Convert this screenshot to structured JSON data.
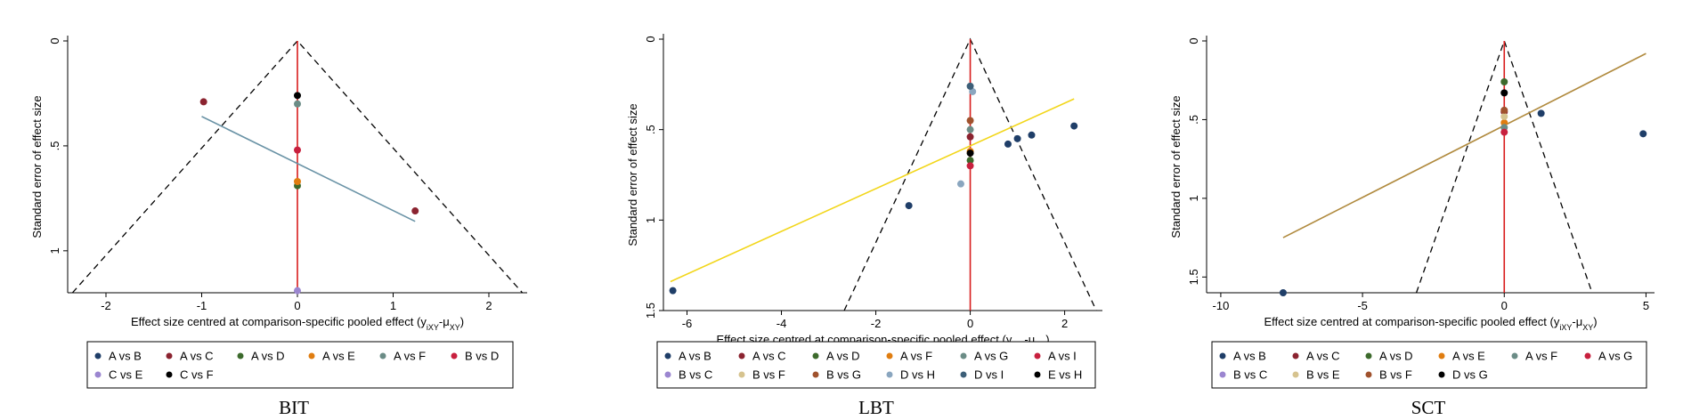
{
  "figure_title": "",
  "chart_data": [
    {
      "type": "scatter",
      "caption": "BIT",
      "xlabel": "Effect size centred at comparison-specific pooled effect (y",
      "xlabel_sub1": "iXY",
      "xlabel_mid": "-μ",
      "xlabel_sub2": "XY",
      "xlabel_end": ")",
      "ylabel": "Standard error of effect size",
      "xlim": [
        -2.4,
        2.4
      ],
      "ylim": [
        0,
        1.2
      ],
      "y_reversed": true,
      "xticks": [
        -2,
        -1,
        0,
        1,
        2
      ],
      "yticks": [
        0,
        0.5,
        1
      ],
      "ytick_labels": [
        "0",
        ".5",
        "1"
      ],
      "funnel_x_at_max": 2.35,
      "regression_line": {
        "x": [
          -1.0,
          1.23
        ],
        "y": [
          0.36,
          0.86
        ],
        "color": "#6a93a6"
      },
      "legend_position": "bottom",
      "legend_columns": 6,
      "series": [
        {
          "name": "A vs B",
          "color": "#1f3e68",
          "points": []
        },
        {
          "name": "A vs C",
          "color": "#8b2330",
          "points": [
            [
              -0.98,
              0.29
            ],
            [
              1.23,
              0.81
            ]
          ]
        },
        {
          "name": "A vs D",
          "color": "#3c6a2c",
          "points": [
            [
              0.0,
              0.69
            ]
          ]
        },
        {
          "name": "A vs E",
          "color": "#e07d10",
          "points": [
            [
              0.0,
              0.67
            ]
          ]
        },
        {
          "name": "A vs F",
          "color": "#6b8c86",
          "points": [
            [
              0.0,
              0.3
            ]
          ]
        },
        {
          "name": "B vs D",
          "color": "#c8203e",
          "points": [
            [
              0.0,
              0.52
            ]
          ]
        },
        {
          "name": "C vs E",
          "color": "#9b86d0",
          "points": [
            [
              0.0,
              1.19
            ]
          ]
        },
        {
          "name": "C vs F",
          "color": "#000000",
          "points": [
            [
              0.0,
              0.26
            ]
          ]
        }
      ]
    },
    {
      "type": "scatter",
      "caption": "LBT",
      "xlabel": "Effect size centred at comparison-specific pooled effect (y",
      "xlabel_sub1": "iXY",
      "xlabel_mid": "-μ",
      "xlabel_sub2": "XY",
      "xlabel_end": ")",
      "ylabel": "Standard error of effect size",
      "xlim": [
        -6.5,
        2.8
      ],
      "ylim": [
        0,
        1.5
      ],
      "y_reversed": true,
      "xticks": [
        -6,
        -4,
        -2,
        0,
        2
      ],
      "yticks": [
        0,
        0.5,
        1,
        1.5
      ],
      "ytick_labels": [
        "0",
        ".5",
        "1",
        "1.5"
      ],
      "funnel_x_at_max": 2.67,
      "regression_line": {
        "x": [
          -6.35,
          2.2
        ],
        "y": [
          1.34,
          0.33
        ],
        "color": "#f2d61a"
      },
      "legend_position": "bottom",
      "legend_columns": 6,
      "series": [
        {
          "name": "A vs B",
          "color": "#1f3e68",
          "points": [
            [
              -6.3,
              1.39
            ],
            [
              -1.3,
              0.92
            ],
            [
              0.8,
              0.58
            ],
            [
              1.0,
              0.55
            ],
            [
              1.3,
              0.53
            ],
            [
              2.2,
              0.48
            ]
          ]
        },
        {
          "name": "A vs C",
          "color": "#8b2330",
          "points": [
            [
              0.0,
              0.54
            ]
          ]
        },
        {
          "name": "A vs D",
          "color": "#3c6a2c",
          "points": [
            [
              0.0,
              0.67
            ]
          ]
        },
        {
          "name": "A vs F",
          "color": "#e07d10",
          "points": [
            [
              0.0,
              0.62
            ]
          ]
        },
        {
          "name": "A vs G",
          "color": "#6b8c86",
          "points": [
            [
              0.0,
              0.5
            ]
          ]
        },
        {
          "name": "A vs I",
          "color": "#c8203e",
          "points": [
            [
              0.0,
              0.7
            ]
          ]
        },
        {
          "name": "B vs C",
          "color": "#9b86d0",
          "points": []
        },
        {
          "name": "B vs F",
          "color": "#d6c38f",
          "points": []
        },
        {
          "name": "B vs G",
          "color": "#a0522d",
          "points": [
            [
              0.0,
              0.45
            ]
          ]
        },
        {
          "name": "D vs H",
          "color": "#8aa6bf",
          "points": [
            [
              -0.2,
              0.8
            ],
            [
              0.05,
              0.29
            ]
          ]
        },
        {
          "name": "D vs I",
          "color": "#3d5f78",
          "points": [
            [
              0.0,
              0.26
            ]
          ]
        },
        {
          "name": "E vs H",
          "color": "#000000",
          "points": [
            [
              0.0,
              0.63
            ]
          ]
        }
      ]
    },
    {
      "type": "scatter",
      "caption": "SCT",
      "xlabel": "Effect size centred at comparison-specific pooled effect (y",
      "xlabel_sub1": "iXY",
      "xlabel_mid": "-μ",
      "xlabel_sub2": "XY",
      "xlabel_end": ")",
      "ylabel": "Standard error of effect size",
      "xlim": [
        -10.5,
        5.3
      ],
      "ylim": [
        0,
        1.6
      ],
      "y_reversed": true,
      "xticks": [
        -10,
        -5,
        0,
        5
      ],
      "yticks": [
        0,
        0.5,
        1,
        1.5
      ],
      "ytick_labels": [
        "0",
        ".5",
        "1",
        "1.5"
      ],
      "funnel_x_at_max": 3.1,
      "regression_line": {
        "x": [
          -7.8,
          5.0
        ],
        "y": [
          1.25,
          0.08
        ],
        "color": "#b08a3e"
      },
      "legend_position": "bottom",
      "legend_columns": 6,
      "series": [
        {
          "name": "A vs B",
          "color": "#1f3e68",
          "points": [
            [
              -7.8,
              1.6
            ],
            [
              1.3,
              0.46
            ],
            [
              4.9,
              0.59
            ]
          ]
        },
        {
          "name": "A vs C",
          "color": "#8b2330",
          "points": [
            [
              0.0,
              0.45
            ]
          ]
        },
        {
          "name": "A vs D",
          "color": "#3c6a2c",
          "points": [
            [
              0.0,
              0.26
            ]
          ]
        },
        {
          "name": "A vs E",
          "color": "#e07d10",
          "points": [
            [
              0.0,
              0.52
            ]
          ]
        },
        {
          "name": "A vs F",
          "color": "#6b8c86",
          "points": [
            [
              0.0,
              0.55
            ]
          ]
        },
        {
          "name": "A vs G",
          "color": "#c8203e",
          "points": [
            [
              0.0,
              0.58
            ]
          ]
        },
        {
          "name": "B vs C",
          "color": "#9b86d0",
          "points": []
        },
        {
          "name": "B vs E",
          "color": "#d6c38f",
          "points": [
            [
              0.0,
              0.48
            ]
          ]
        },
        {
          "name": "B vs F",
          "color": "#a0522d",
          "points": [
            [
              0.0,
              0.44
            ]
          ]
        },
        {
          "name": "D vs G",
          "color": "#000000",
          "points": [
            [
              0.0,
              0.33
            ]
          ]
        }
      ]
    }
  ]
}
